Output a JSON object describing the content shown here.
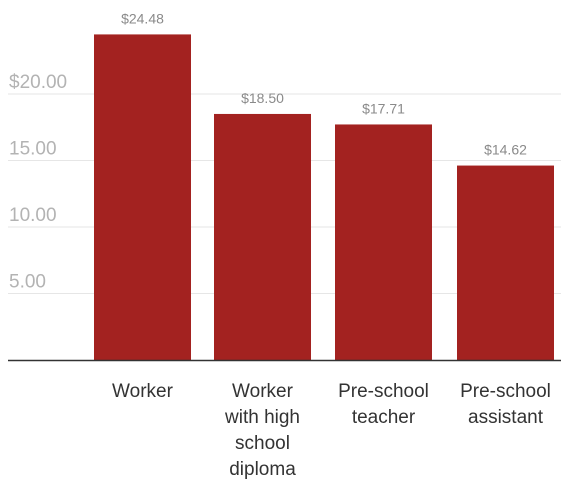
{
  "chart_data": {
    "type": "bar",
    "categories": [
      [
        "Worker"
      ],
      [
        "Worker",
        "with high",
        "school",
        "diploma"
      ],
      [
        "Pre-school",
        "teacher"
      ],
      [
        "Pre-school",
        "assistant"
      ]
    ],
    "values": [
      24.48,
      18.5,
      17.71,
      14.62
    ],
    "data_labels": [
      "$24.48",
      "$18.50",
      "$17.71",
      "$14.62"
    ],
    "y_ticks": [
      {
        "value": 5,
        "label": "5.00"
      },
      {
        "value": 10,
        "label": "10.00"
      },
      {
        "value": 15,
        "label": "15.00"
      },
      {
        "value": 20,
        "label": "$20.00"
      }
    ],
    "ylim": [
      0,
      26
    ],
    "grid": true,
    "bar_color": "#a32220",
    "grid_color": "#e6e6e6",
    "axis_color": "#333333"
  }
}
